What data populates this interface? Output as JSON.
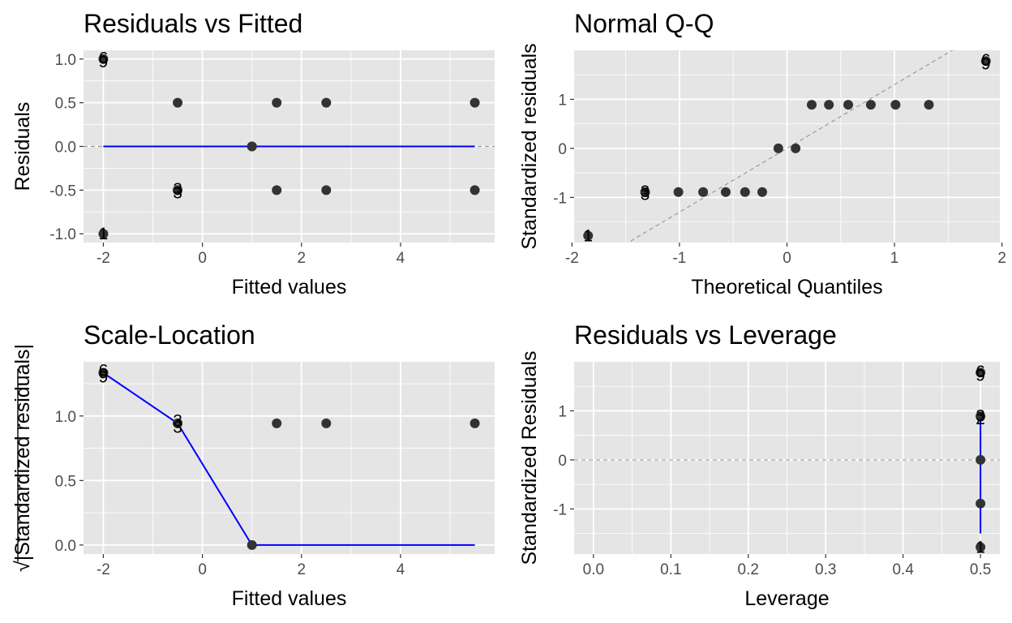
{
  "chart_data": [
    {
      "type": "scatter",
      "title": "Residuals vs Fitted",
      "xlabel": "Fitted values",
      "ylabel": "Residuals",
      "xlim": [
        -2.4,
        5.9
      ],
      "ylim": [
        -1.1,
        1.1
      ],
      "xticks": [
        -2,
        0,
        2,
        4
      ],
      "xtick_labels": [
        "-2",
        "0",
        "2",
        "4"
      ],
      "yticks": [
        -1.0,
        -0.5,
        0.0,
        0.5,
        1.0
      ],
      "ytick_labels": [
        "-1.0",
        "-0.5",
        "0.0",
        "0.5",
        "1.0"
      ],
      "points": [
        {
          "x": -2,
          "y": 1.0
        },
        {
          "x": -2,
          "y": -1.0
        },
        {
          "x": -0.5,
          "y": 0.5
        },
        {
          "x": -0.5,
          "y": -0.5
        },
        {
          "x": -0.5,
          "y": -0.5
        },
        {
          "x": 1,
          "y": 0.0
        },
        {
          "x": 1,
          "y": 0.0
        },
        {
          "x": 1.5,
          "y": 0.5
        },
        {
          "x": 1.5,
          "y": -0.5
        },
        {
          "x": 2.5,
          "y": 0.5
        },
        {
          "x": 2.5,
          "y": -0.5
        },
        {
          "x": 5.5,
          "y": 0.5
        },
        {
          "x": 5.5,
          "y": -0.5
        }
      ],
      "point_labels": [
        {
          "x": -2,
          "y": 1.02,
          "text": "6"
        },
        {
          "x": -2,
          "y": 0.98,
          "text": "9"
        },
        {
          "x": -2,
          "y": -0.99,
          "text": "1"
        },
        {
          "x": -0.5,
          "y": -0.48,
          "text": "3"
        },
        {
          "x": -0.5,
          "y": -0.52,
          "text": "3"
        }
      ],
      "reference_line": {
        "y": 0,
        "style": "dashed"
      },
      "smooth": {
        "x": [
          -2,
          5.5
        ],
        "y": [
          0,
          0
        ]
      }
    },
    {
      "type": "scatter",
      "title": "Normal Q-Q",
      "xlabel": "Theoretical Quantiles",
      "ylabel": "Standardized residuals",
      "xlim": [
        -1.98,
        1.98
      ],
      "ylim": [
        -1.92,
        2.0
      ],
      "xticks": [
        -2,
        -1,
        0,
        1,
        2
      ],
      "xtick_labels": [
        "-2",
        "-1",
        "0",
        "1",
        "2"
      ],
      "yticks": [
        -1,
        0,
        1
      ],
      "ytick_labels": [
        "-1",
        "0",
        "1"
      ],
      "points": [
        {
          "x": -1.85,
          "y": -1.78
        },
        {
          "x": -1.32,
          "y": -0.89
        },
        {
          "x": -1.01,
          "y": -0.89
        },
        {
          "x": -0.78,
          "y": -0.89
        },
        {
          "x": -0.57,
          "y": -0.89
        },
        {
          "x": -0.39,
          "y": -0.89
        },
        {
          "x": -0.23,
          "y": -0.89
        },
        {
          "x": -0.08,
          "y": 0.0
        },
        {
          "x": 0.08,
          "y": 0.0
        },
        {
          "x": 0.23,
          "y": 0.89
        },
        {
          "x": 0.39,
          "y": 0.89
        },
        {
          "x": 0.57,
          "y": 0.89
        },
        {
          "x": 0.78,
          "y": 0.89
        },
        {
          "x": 1.01,
          "y": 0.89
        },
        {
          "x": 1.32,
          "y": 0.89
        },
        {
          "x": 1.85,
          "y": 1.78
        }
      ],
      "point_labels": [
        {
          "x": -1.85,
          "y": -1.76,
          "text": "1"
        },
        {
          "x": -1.32,
          "y": -0.86,
          "text": "3"
        },
        {
          "x": -1.32,
          "y": -0.92,
          "text": "3"
        },
        {
          "x": 1.85,
          "y": 1.82,
          "text": "6"
        },
        {
          "x": 1.85,
          "y": 1.74,
          "text": "9"
        }
      ],
      "reference_line": {
        "slope": 1.3,
        "intercept": 0,
        "style": "dashed"
      }
    },
    {
      "type": "scatter",
      "title": "Scale-Location",
      "xlabel": "Fitted values",
      "ylabel": "Standardized residuals",
      "ylabel_prefix": "√",
      "xlim": [
        -2.4,
        5.9
      ],
      "ylim": [
        -0.07,
        1.42
      ],
      "xticks": [
        -2,
        0,
        2,
        4
      ],
      "xtick_labels": [
        "-2",
        "0",
        "2",
        "4"
      ],
      "yticks": [
        0.0,
        0.5,
        1.0
      ],
      "ytick_labels": [
        "0.0",
        "0.5",
        "1.0"
      ],
      "points": [
        {
          "x": -2,
          "y": 1.334
        },
        {
          "x": -2,
          "y": 1.334
        },
        {
          "x": -0.5,
          "y": 0.943
        },
        {
          "x": -0.5,
          "y": 0.943
        },
        {
          "x": 1,
          "y": 0.0
        },
        {
          "x": 1.5,
          "y": 0.943
        },
        {
          "x": 2.5,
          "y": 0.943
        },
        {
          "x": 5.5,
          "y": 0.943
        }
      ],
      "point_labels": [
        {
          "x": -2,
          "y": 1.36,
          "text": "6"
        },
        {
          "x": -2,
          "y": 1.31,
          "text": "9"
        },
        {
          "x": -0.5,
          "y": 0.97,
          "text": "3"
        },
        {
          "x": -0.5,
          "y": 0.92,
          "text": "3"
        }
      ],
      "smooth": {
        "x": [
          -2,
          -0.5,
          1,
          5.5
        ],
        "y": [
          1.334,
          0.943,
          0.0,
          0.0
        ]
      }
    },
    {
      "type": "scatter",
      "title": "Residuals vs Leverage",
      "xlabel": "Leverage",
      "ylabel": "Standardized Residuals",
      "xlim": [
        -0.025,
        0.525
      ],
      "ylim": [
        -1.92,
        2.0
      ],
      "xticks": [
        0.0,
        0.1,
        0.2,
        0.3,
        0.4,
        0.5
      ],
      "xtick_labels": [
        "0.0",
        "0.1",
        "0.2",
        "0.3",
        "0.4",
        "0.5"
      ],
      "yticks": [
        -1,
        0,
        1
      ],
      "ytick_labels": [
        "-1",
        "0",
        "1"
      ],
      "points": [
        {
          "x": 0.5,
          "y": 1.78
        },
        {
          "x": 0.5,
          "y": 0.89
        },
        {
          "x": 0.5,
          "y": 0.0
        },
        {
          "x": 0.5,
          "y": -0.89
        },
        {
          "x": 0.5,
          "y": -1.78
        }
      ],
      "point_labels": [
        {
          "x": 0.5,
          "y": 1.82,
          "text": "6"
        },
        {
          "x": 0.5,
          "y": 1.74,
          "text": "9"
        },
        {
          "x": 0.5,
          "y": 0.92,
          "text": "3"
        },
        {
          "x": 0.5,
          "y": 0.86,
          "text": "2"
        },
        {
          "x": 0.5,
          "y": -1.76,
          "text": "1"
        }
      ],
      "reference_line": {
        "y": 0,
        "style": "dashed"
      },
      "smooth": {
        "x": [
          0.5,
          0.5
        ],
        "y": [
          -1.5,
          0.9
        ]
      }
    }
  ],
  "colors": {
    "panel_background": "#e5e5e5",
    "grid": "#ffffff",
    "point": "#333333",
    "smooth": "#0000ff",
    "reference": "#999999",
    "tick_text": "#4d4d4d"
  }
}
